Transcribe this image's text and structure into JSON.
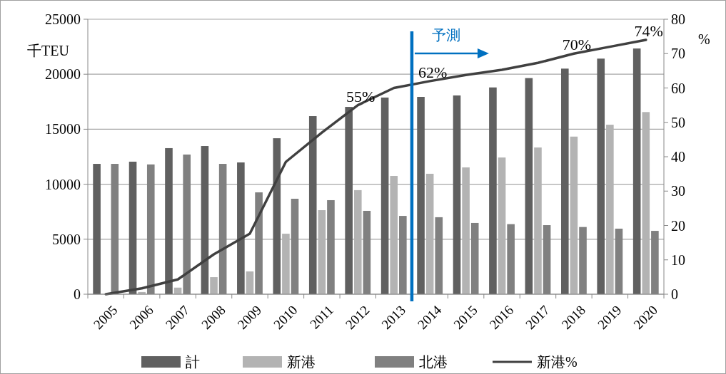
{
  "chart_data": {
    "type": "bar",
    "ylabel": "千TEU",
    "y2label": "%",
    "categories": [
      "2005",
      "2006",
      "2007",
      "2008",
      "2009",
      "2010",
      "2011",
      "2012",
      "2013",
      "2014",
      "2015",
      "2016",
      "2017",
      "2018",
      "2019",
      "2020"
    ],
    "series": [
      {
        "name": "計",
        "color": "#606060",
        "values": [
          11850,
          12050,
          13280,
          13470,
          11980,
          14180,
          16190,
          17030,
          17880,
          17940,
          18070,
          18800,
          19650,
          20510,
          21420,
          22340
        ]
      },
      {
        "name": "新港",
        "color": "#b3b3b3",
        "values": [
          0,
          200,
          600,
          1550,
          2070,
          5500,
          7640,
          9460,
          10750,
          10950,
          11530,
          12430,
          13340,
          14330,
          15410,
          16560
        ]
      },
      {
        "name": "北港",
        "color": "#808080",
        "values": [
          11850,
          11800,
          12700,
          11850,
          9260,
          8680,
          8550,
          7580,
          7120,
          7000,
          6480,
          6370,
          6280,
          6110,
          5960,
          5760
        ]
      },
      {
        "name": "新港%",
        "type": "line",
        "axis": "y2",
        "color": "#404040",
        "values": [
          0,
          1.7,
          4.3,
          11.6,
          17.6,
          38.5,
          47,
          55,
          60,
          62,
          63.8,
          65.3,
          67.3,
          70,
          72,
          74
        ]
      }
    ],
    "ylim": [
      0,
      25000
    ],
    "yticks": [
      0,
      5000,
      10000,
      15000,
      20000,
      25000
    ],
    "y2lim": [
      0,
      80
    ],
    "y2ticks": [
      0,
      10,
      20,
      30,
      40,
      50,
      60,
      70,
      80
    ],
    "grid": "y",
    "legend": "bottom",
    "marker": "none",
    "annotations": [
      {
        "text": "55%",
        "x": "2012",
        "y": 17190
      },
      {
        "text": "62%",
        "x": "2014",
        "y": 19380
      },
      {
        "text": "70%",
        "x": "2018",
        "y": 21880
      },
      {
        "text": "74%",
        "x": "2020",
        "y": 23130
      }
    ],
    "ref_lines": [
      {
        "axis": "x",
        "value": "2014",
        "label": "予測",
        "color": "#0070c0"
      }
    ]
  }
}
